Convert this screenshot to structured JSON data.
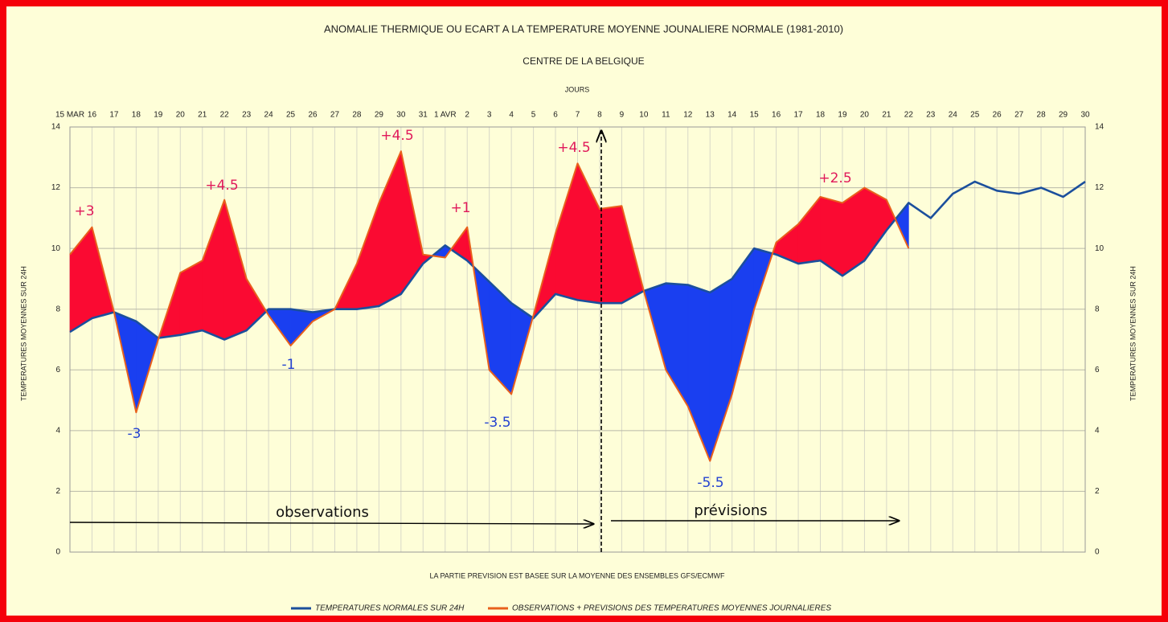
{
  "chart_data": {
    "type": "line",
    "title": "ANOMALIE THERMIQUE OU ECART A LA TEMPERATURE MOYENNE JOUNALIERE NORMALE (1981-2010)",
    "subtitle": "CENTRE DE LA BELGIQUE",
    "x_label": "JOURS",
    "y_label": "TEMPERATURES MOYENNES SUR 24H",
    "y2_label": "TEMPERATURES MOYENNES SUR 24H",
    "footnote": "LA PARTIE PREVISION EST BASEE SUR LA MOYENNE DES ENSEMBLES GFS/ECMWF",
    "categories": [
      "15 MAR",
      "16",
      "17",
      "18",
      "19",
      "20",
      "21",
      "22",
      "23",
      "24",
      "25",
      "26",
      "27",
      "28",
      "29",
      "30",
      "31",
      "1 AVR",
      "2",
      "3",
      "4",
      "5",
      "6",
      "7",
      "8",
      "9",
      "10",
      "11",
      "12",
      "13",
      "14",
      "15",
      "16",
      "17",
      "18",
      "19",
      "20",
      "21",
      "22",
      "23",
      "24",
      "25",
      "26",
      "27",
      "28",
      "29",
      "30"
    ],
    "series": [
      {
        "name": "TEMPERATURES NORMALES SUR 24H",
        "color": "#1b4f9c",
        "values": [
          7.25,
          7.7,
          7.9,
          7.6,
          7.05,
          7.15,
          7.3,
          7.0,
          7.3,
          8.0,
          8.0,
          7.9,
          8.0,
          8.0,
          8.1,
          8.5,
          9.5,
          10.1,
          9.6,
          8.9,
          8.2,
          7.7,
          8.5,
          8.3,
          8.2,
          8.2,
          8.6,
          8.85,
          8.8,
          8.55,
          9.0,
          10.0,
          9.8,
          9.5,
          9.6,
          9.1,
          9.6,
          10.6,
          11.5,
          11.0,
          11.8,
          12.2,
          11.9,
          11.8,
          12.0,
          11.7,
          12.2
        ]
      },
      {
        "name": "OBSERVATIONS + PREVISIONS DES TEMPERATURES MOYENNES JOURNALIERES",
        "color": "#e8601c",
        "values": [
          9.8,
          10.7,
          7.9,
          4.6,
          7.0,
          9.2,
          9.6,
          11.6,
          9.0,
          7.8,
          6.8,
          7.6,
          8.0,
          9.5,
          11.5,
          13.2,
          9.8,
          9.7,
          10.7,
          6.0,
          5.2,
          7.8,
          10.5,
          12.8,
          11.3,
          11.4,
          8.6,
          6.0,
          4.8,
          3.0,
          5.2,
          8.0,
          10.2,
          10.8,
          11.7,
          11.5,
          12.0,
          11.6,
          10.0,
          null,
          null,
          null,
          null,
          null,
          null,
          null,
          null
        ]
      }
    ],
    "above_color": "#fa0a32",
    "below_color": "#1a3ff0",
    "annotations": [
      "+3",
      "-3",
      "+4.5",
      "-1",
      "+4.5",
      "+1",
      "-3.5",
      "+4.5",
      "-5.5",
      "+2.5"
    ],
    "period_labels": [
      "observations",
      "prévisions"
    ],
    "ylim": [
      0,
      14
    ],
    "yticks": [
      0,
      2,
      4,
      6,
      8,
      10,
      12,
      14
    ],
    "y2lim": [
      0,
      14
    ],
    "y2ticks": [
      0,
      2,
      4,
      6,
      8,
      10,
      12,
      14
    ],
    "grid": true
  }
}
